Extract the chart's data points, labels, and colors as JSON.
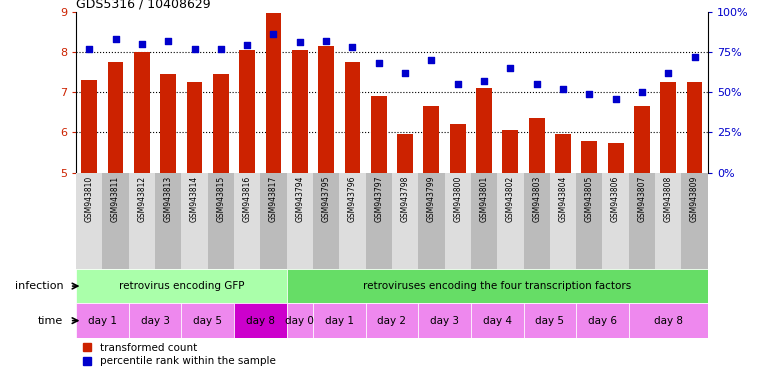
{
  "title": "GDS5316 / 10408629",
  "gsm_labels": [
    "GSM943810",
    "GSM943811",
    "GSM943812",
    "GSM943813",
    "GSM943814",
    "GSM943815",
    "GSM943816",
    "GSM943817",
    "GSM943794",
    "GSM943795",
    "GSM943796",
    "GSM943797",
    "GSM943798",
    "GSM943799",
    "GSM943800",
    "GSM943801",
    "GSM943802",
    "GSM943803",
    "GSM943804",
    "GSM943805",
    "GSM943806",
    "GSM943807",
    "GSM943808",
    "GSM943809"
  ],
  "bar_values": [
    7.3,
    7.75,
    8.0,
    7.45,
    7.25,
    7.45,
    8.05,
    8.97,
    8.05,
    8.15,
    7.75,
    6.9,
    5.95,
    6.65,
    6.2,
    7.1,
    6.05,
    6.35,
    5.95,
    5.8,
    5.75,
    6.65,
    7.25,
    7.25
  ],
  "scatter_values": [
    77,
    83,
    80,
    82,
    77,
    77,
    79,
    86,
    81,
    82,
    78,
    68,
    62,
    70,
    55,
    57,
    65,
    55,
    52,
    49,
    46,
    50,
    62,
    72
  ],
  "bar_color": "#cc2200",
  "scatter_color": "#0000cc",
  "ylim_left": [
    5,
    9
  ],
  "ylim_right": [
    0,
    100
  ],
  "yticks_left": [
    5,
    6,
    7,
    8,
    9
  ],
  "yticks_right": [
    0,
    25,
    50,
    75,
    100
  ],
  "ytick_labels_right": [
    "0%",
    "25%",
    "50%",
    "75%",
    "100%"
  ],
  "infection_groups_raw": [
    [
      0,
      7,
      "retrovirus encoding GFP",
      "#aaffaa"
    ],
    [
      8,
      23,
      "retroviruses encoding the four transcription factors",
      "#66dd66"
    ]
  ],
  "time_groups_raw": [
    [
      0,
      1,
      "day 1",
      "#ee88ee"
    ],
    [
      2,
      3,
      "day 3",
      "#ee88ee"
    ],
    [
      4,
      5,
      "day 5",
      "#ee88ee"
    ],
    [
      6,
      7,
      "day 8",
      "#cc00cc"
    ],
    [
      8,
      8,
      "day 0",
      "#ee88ee"
    ],
    [
      9,
      10,
      "day 1",
      "#ee88ee"
    ],
    [
      11,
      12,
      "day 2",
      "#ee88ee"
    ],
    [
      13,
      14,
      "day 3",
      "#ee88ee"
    ],
    [
      15,
      16,
      "day 4",
      "#ee88ee"
    ],
    [
      17,
      18,
      "day 5",
      "#ee88ee"
    ],
    [
      19,
      20,
      "day 6",
      "#ee88ee"
    ],
    [
      21,
      23,
      "day 8",
      "#ee88ee"
    ]
  ],
  "infection_label": "infection",
  "time_label": "time",
  "legend_bar_label": "transformed count",
  "legend_scatter_label": "percentile rank within the sample",
  "gsm_bg_colors": [
    "#dddddd",
    "#bbbbbb"
  ]
}
